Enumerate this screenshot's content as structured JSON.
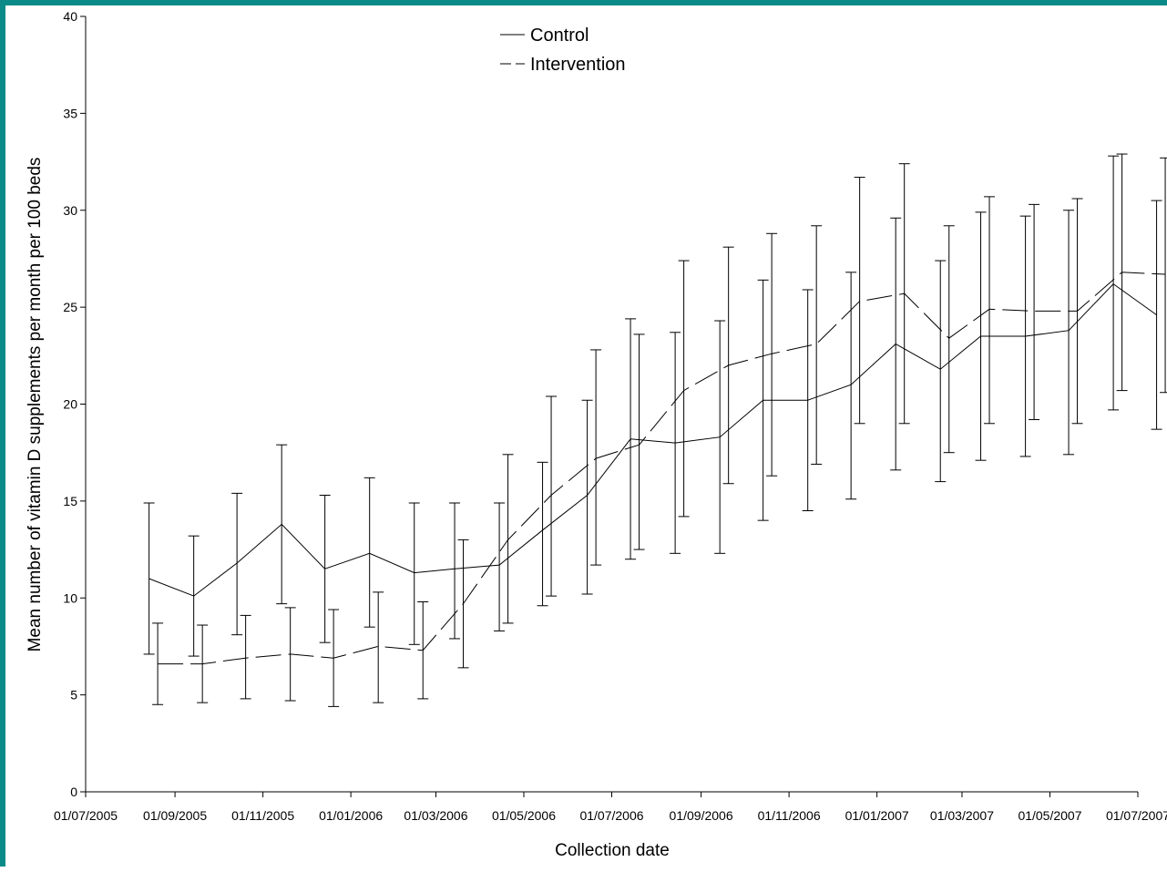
{
  "chart_data": {
    "type": "line",
    "title": "",
    "xlabel": "Collection date",
    "ylabel": "Mean number of vitamin D supplements per month per 100 beds",
    "ylim": [
      0,
      40
    ],
    "yticks": [
      0,
      5,
      10,
      15,
      20,
      25,
      30,
      35,
      40
    ],
    "xlim": [
      "2005-07-01",
      "2007-07-01"
    ],
    "xticks": [
      "01/07/2005",
      "01/09/2005",
      "01/11/2005",
      "01/01/2006",
      "01/03/2006",
      "01/05/2006",
      "01/07/2006",
      "01/09/2006",
      "01/11/2006",
      "01/01/2007",
      "01/03/2007",
      "01/05/2007",
      "01/07/2007"
    ],
    "grid": false,
    "legend_position": "top-center",
    "error_bars": true,
    "series": [
      {
        "name": "Control",
        "line_style": "solid",
        "color": "#000000",
        "points": [
          {
            "x": "2005-08-14",
            "y": 11.0,
            "lo": 7.1,
            "hi": 14.9
          },
          {
            "x": "2005-09-14",
            "y": 10.1,
            "lo": 7.0,
            "hi": 13.2
          },
          {
            "x": "2005-10-14",
            "y": 11.8,
            "lo": 8.1,
            "hi": 15.4
          },
          {
            "x": "2005-11-14",
            "y": 13.8,
            "lo": 9.7,
            "hi": 17.9
          },
          {
            "x": "2005-12-14",
            "y": 11.5,
            "lo": 7.7,
            "hi": 15.3
          },
          {
            "x": "2006-01-14",
            "y": 12.3,
            "lo": 8.5,
            "hi": 16.2
          },
          {
            "x": "2006-02-14",
            "y": 11.3,
            "lo": 7.6,
            "hi": 14.9
          },
          {
            "x": "2006-03-14",
            "y": 11.5,
            "lo": 7.9,
            "hi": 14.9
          },
          {
            "x": "2006-04-14",
            "y": 11.7,
            "lo": 8.3,
            "hi": 14.9
          },
          {
            "x": "2006-05-14",
            "y": 13.5,
            "lo": 9.6,
            "hi": 17.0
          },
          {
            "x": "2006-06-14",
            "y": 15.3,
            "lo": 10.2,
            "hi": 20.2
          },
          {
            "x": "2006-07-14",
            "y": 18.2,
            "lo": 12.0,
            "hi": 24.4
          },
          {
            "x": "2006-08-14",
            "y": 18.0,
            "lo": 12.3,
            "hi": 23.7
          },
          {
            "x": "2006-09-14",
            "y": 18.3,
            "lo": 12.3,
            "hi": 24.3
          },
          {
            "x": "2006-10-14",
            "y": 20.2,
            "lo": 14.0,
            "hi": 26.4
          },
          {
            "x": "2006-11-14",
            "y": 20.2,
            "lo": 14.5,
            "hi": 25.9
          },
          {
            "x": "2006-12-14",
            "y": 21.0,
            "lo": 15.1,
            "hi": 26.8
          },
          {
            "x": "2007-01-14",
            "y": 23.1,
            "lo": 16.6,
            "hi": 29.6
          },
          {
            "x": "2007-02-14",
            "y": 21.8,
            "lo": 16.0,
            "hi": 27.4
          },
          {
            "x": "2007-03-14",
            "y": 23.5,
            "lo": 17.1,
            "hi": 29.9
          },
          {
            "x": "2007-04-14",
            "y": 23.5,
            "lo": 17.3,
            "hi": 29.7
          },
          {
            "x": "2007-05-14",
            "y": 23.8,
            "lo": 17.4,
            "hi": 30.0
          },
          {
            "x": "2007-06-14",
            "y": 26.2,
            "lo": 19.7,
            "hi": 32.8
          },
          {
            "x": "2007-07-14",
            "y": 24.6,
            "lo": 18.7,
            "hi": 30.5
          }
        ]
      },
      {
        "name": "Intervention",
        "line_style": "dashed",
        "color": "#000000",
        "points": [
          {
            "x": "2005-08-20",
            "y": 6.6,
            "lo": 4.5,
            "hi": 8.7
          },
          {
            "x": "2005-09-20",
            "y": 6.6,
            "lo": 4.6,
            "hi": 8.6
          },
          {
            "x": "2005-10-20",
            "y": 6.9,
            "lo": 4.8,
            "hi": 9.1
          },
          {
            "x": "2005-11-20",
            "y": 7.1,
            "lo": 4.7,
            "hi": 9.5
          },
          {
            "x": "2005-12-20",
            "y": 6.9,
            "lo": 4.4,
            "hi": 9.4
          },
          {
            "x": "2006-01-20",
            "y": 7.5,
            "lo": 4.6,
            "hi": 10.3
          },
          {
            "x": "2006-02-20",
            "y": 7.3,
            "lo": 4.8,
            "hi": 9.8
          },
          {
            "x": "2006-03-20",
            "y": 9.7,
            "lo": 6.4,
            "hi": 13.0
          },
          {
            "x": "2006-04-20",
            "y": 13.0,
            "lo": 8.7,
            "hi": 17.4
          },
          {
            "x": "2006-05-20",
            "y": 15.3,
            "lo": 10.1,
            "hi": 20.4
          },
          {
            "x": "2006-06-20",
            "y": 17.2,
            "lo": 11.7,
            "hi": 22.8
          },
          {
            "x": "2006-07-20",
            "y": 17.9,
            "lo": 12.5,
            "hi": 23.6
          },
          {
            "x": "2006-08-20",
            "y": 20.7,
            "lo": 14.2,
            "hi": 27.4
          },
          {
            "x": "2006-09-20",
            "y": 22.0,
            "lo": 15.9,
            "hi": 28.1
          },
          {
            "x": "2006-10-20",
            "y": 22.6,
            "lo": 16.3,
            "hi": 28.8
          },
          {
            "x": "2006-11-20",
            "y": 23.1,
            "lo": 16.9,
            "hi": 29.2
          },
          {
            "x": "2006-12-20",
            "y": 25.3,
            "lo": 19.0,
            "hi": 31.7
          },
          {
            "x": "2007-01-20",
            "y": 25.7,
            "lo": 19.0,
            "hi": 32.4
          },
          {
            "x": "2007-02-20",
            "y": 23.4,
            "lo": 17.5,
            "hi": 29.2
          },
          {
            "x": "2007-03-20",
            "y": 24.9,
            "lo": 19.0,
            "hi": 30.7
          },
          {
            "x": "2007-04-20",
            "y": 24.8,
            "lo": 19.2,
            "hi": 30.3
          },
          {
            "x": "2007-05-20",
            "y": 24.8,
            "lo": 19.0,
            "hi": 30.6
          },
          {
            "x": "2007-06-20",
            "y": 26.8,
            "lo": 20.7,
            "hi": 32.9
          },
          {
            "x": "2007-07-20",
            "y": 26.7,
            "lo": 20.6,
            "hi": 32.7
          }
        ]
      }
    ]
  },
  "colors": {
    "frame": "#0b8a88",
    "background": "#ffffff",
    "ink": "#000000"
  }
}
